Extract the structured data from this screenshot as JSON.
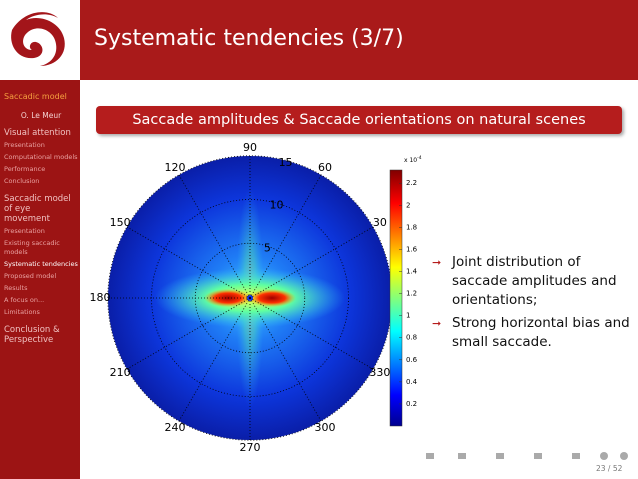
{
  "header": {
    "title": "Systematic tendencies (3/7)"
  },
  "sidebar": {
    "heading": "Saccadic model",
    "author": "O. Le Meur",
    "sections": [
      {
        "title": "Visual attention",
        "items": [
          {
            "text": "Presentation"
          },
          {
            "text": "Computational models"
          },
          {
            "text": "Performance"
          },
          {
            "text": "Conclusion"
          }
        ]
      },
      {
        "title": "Saccadic model of eye movement",
        "items": [
          {
            "text": "Presentation"
          },
          {
            "text": "Existing saccadic models"
          },
          {
            "text": "Systematic tendencies",
            "current": true
          },
          {
            "text": "Proposed model"
          },
          {
            "text": "Results"
          },
          {
            "text": "A focus on..."
          },
          {
            "text": "Limitations"
          }
        ]
      },
      {
        "title": "Conclusion & Perspective"
      }
    ]
  },
  "block": {
    "title": "Saccade amplitudes & Saccade orientations on natural scenes"
  },
  "figure": {
    "angle_labels": [
      90,
      120,
      60,
      150,
      30,
      180,
      210,
      330,
      240,
      300,
      270
    ],
    "radius_labels": [
      5,
      10,
      15
    ],
    "colorbar": {
      "multiplier": "x 10",
      "exponent": "-4",
      "range": [
        0,
        2.32
      ],
      "ticks": [
        2.2,
        2,
        1.8,
        1.6,
        1.4,
        1.2,
        1,
        0.8,
        0.6,
        0.4,
        0.2
      ]
    }
  },
  "bullets": [
    "Joint distribution of saccade amplitudes and orientations;",
    "Strong horizontal bias and small saccade."
  ],
  "footer": {
    "page": "23 / 52"
  }
}
